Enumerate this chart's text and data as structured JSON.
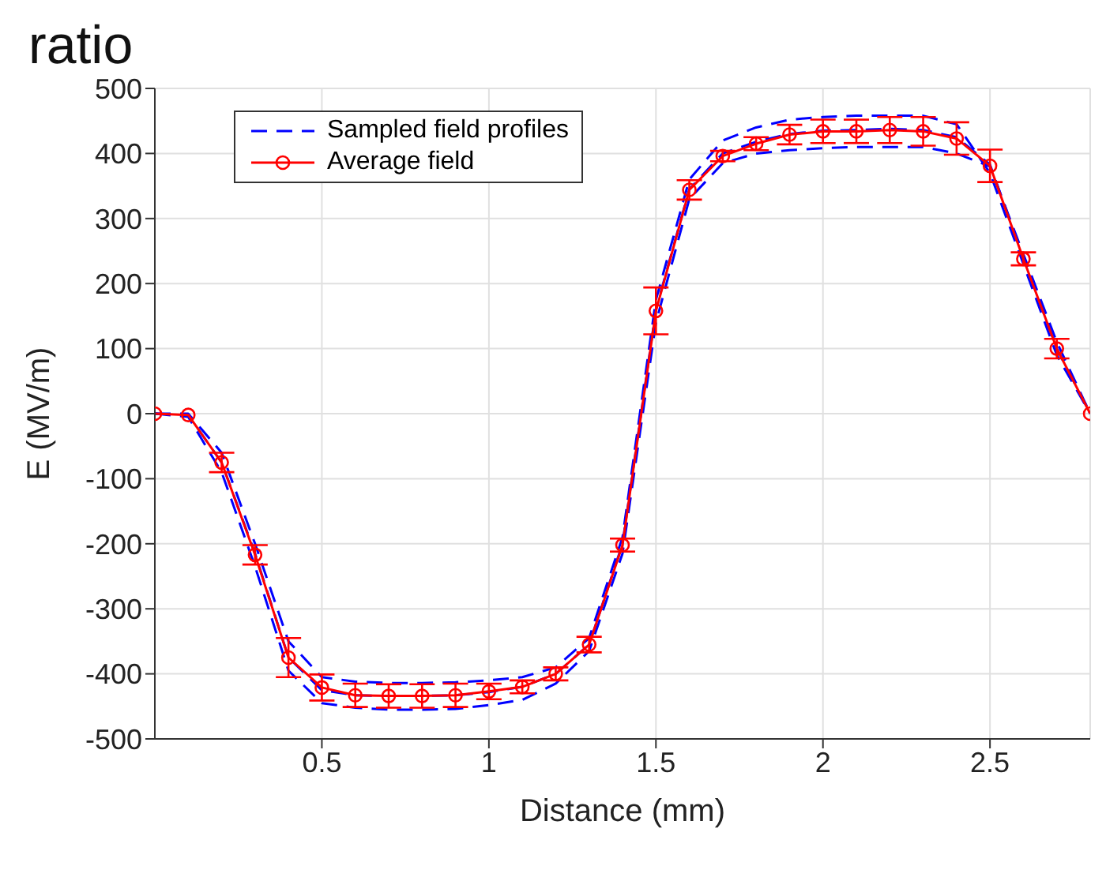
{
  "chart_data": {
    "type": "line",
    "xlabel": "Distance (mm)",
    "ylabel": "E (MV/m)",
    "annotations": [
      "ratio"
    ],
    "x": [
      0,
      0.1,
      0.2,
      0.3,
      0.4,
      0.5,
      0.6,
      0.7,
      0.8,
      0.9,
      1.0,
      1.1,
      1.2,
      1.3,
      1.4,
      1.5,
      1.6,
      1.7,
      1.8,
      1.9,
      2.0,
      2.1,
      2.2,
      2.3,
      2.4,
      2.5,
      2.6,
      2.7,
      2.8
    ],
    "series": [
      {
        "name": "Sampled field profiles",
        "color": "#0000ff",
        "line_style": "dashed",
        "marker": "none",
        "values": [
          0,
          0,
          -60,
          -200,
          -350,
          -405,
          -412,
          -414,
          -414,
          -413,
          -410,
          -405,
          -390,
          -345,
          -190,
          175,
          360,
          420,
          440,
          452,
          456,
          458,
          458,
          458,
          445,
          370,
          230,
          90,
          0
        ]
      },
      {
        "color": "#0000ff",
        "line_style": "dashed",
        "marker": "none",
        "values": [
          0,
          -5,
          -90,
          -235,
          -395,
          -445,
          -452,
          -455,
          -455,
          -454,
          -448,
          -440,
          -415,
          -365,
          -215,
          140,
          330,
          385,
          400,
          405,
          408,
          410,
          410,
          410,
          400,
          380,
          245,
          110,
          0
        ]
      },
      {
        "color": "#0000ff",
        "line_style": "dashed",
        "marker": "none",
        "values": [
          0,
          -2,
          -75,
          -215,
          -375,
          -425,
          -433,
          -434,
          -434,
          -433,
          -428,
          -420,
          -400,
          -355,
          -200,
          160,
          345,
          400,
          418,
          430,
          435,
          436,
          438,
          436,
          425,
          383,
          240,
          100,
          0
        ]
      },
      {
        "name": "Average field",
        "color": "#ff0000",
        "line_style": "solid",
        "marker": "circle",
        "values": [
          0,
          -2,
          -75,
          -217,
          -375,
          -421,
          -433,
          -434,
          -434,
          -433,
          -427,
          -420,
          -400,
          -355,
          -202,
          158,
          344,
          396,
          415,
          429,
          434,
          434,
          436,
          434,
          423,
          381,
          238,
          100,
          0
        ],
        "errors": [
          0,
          0,
          15,
          15,
          30,
          20,
          18,
          18,
          18,
          18,
          12,
          10,
          10,
          12,
          10,
          36,
          15,
          8,
          10,
          15,
          18,
          18,
          20,
          22,
          25,
          25,
          10,
          15,
          0
        ]
      }
    ],
    "xlim": [
      0,
      2.8
    ],
    "xticks": [
      0.5,
      1,
      1.5,
      2,
      2.5
    ],
    "ylim": [
      -500,
      500
    ],
    "yticks": [
      -500,
      -400,
      -300,
      -200,
      -100,
      0,
      100,
      200,
      300,
      400,
      500
    ],
    "grid": true,
    "legend": "top left"
  }
}
